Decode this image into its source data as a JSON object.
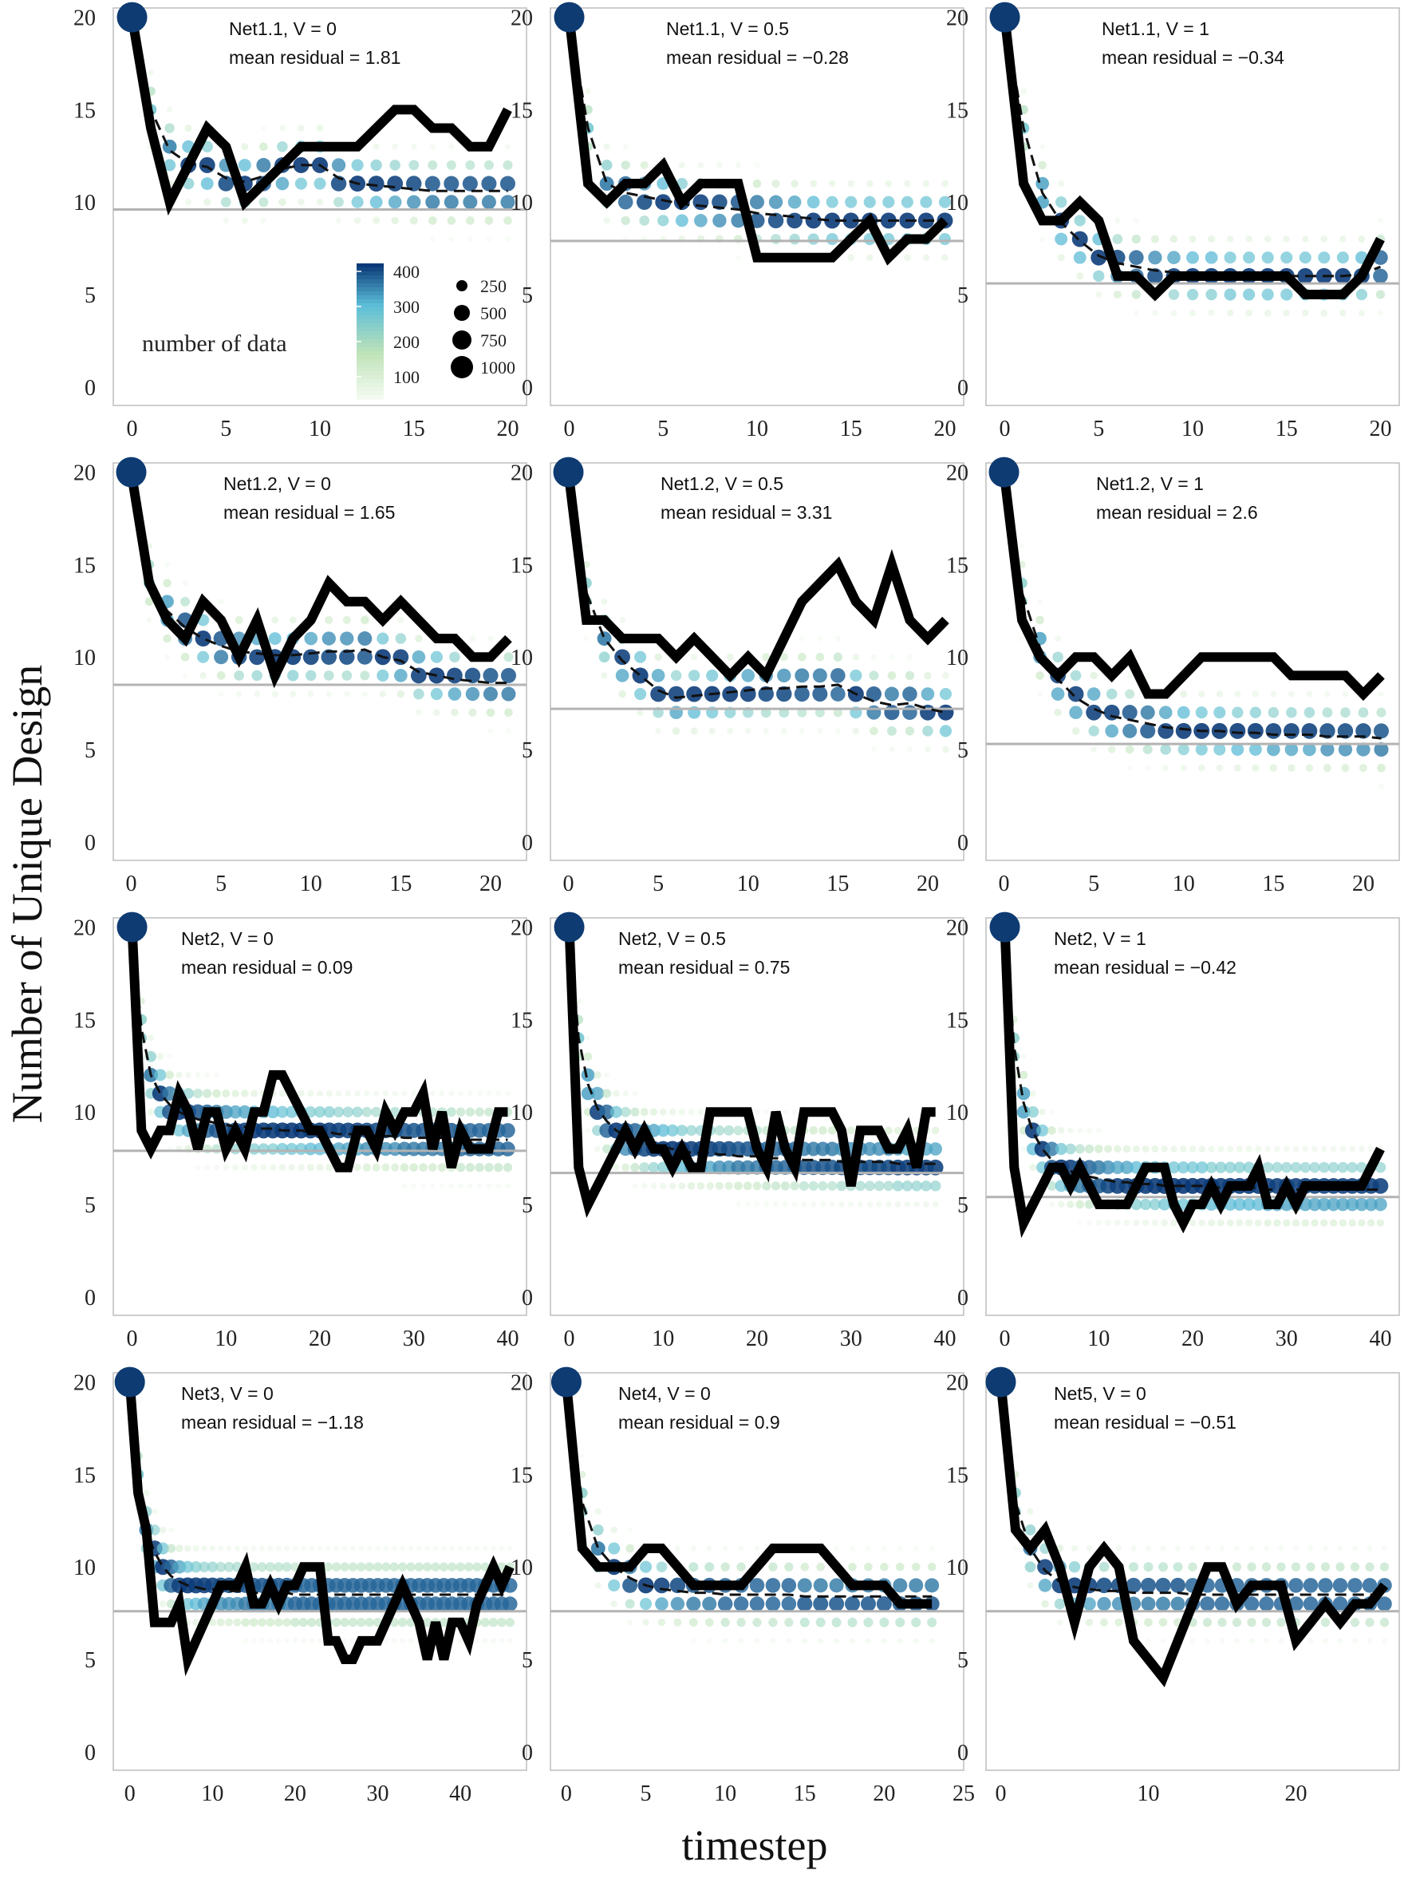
{
  "figure": {
    "ylabel": "Number of Unique Design",
    "xlabel": "timestep"
  },
  "legend": {
    "title": "number of data",
    "color_ticks": [
      "400",
      "300",
      "200",
      "100"
    ],
    "size_labels": [
      "250",
      "500",
      "750",
      "1000"
    ],
    "colors": {
      "low": "#f2faf0",
      "mid": "#bfe3b8",
      "midhigh": "#5bbdd8",
      "high": "#0b3a78"
    }
  },
  "colors": {
    "observed": "#000000",
    "mean": "#111111",
    "baseline": "#b3b3b3",
    "panel_border": "#bdbdbd",
    "start_point": "#0e3b72"
  },
  "chart_data": [
    {
      "type": "line",
      "title": "Net1.1, V = 0",
      "subtitle": "mean residual = 1.81",
      "xlim": [
        -1,
        21
      ],
      "xticks": [
        0,
        5,
        10,
        15,
        20
      ],
      "ylim": [
        -1,
        20.5
      ],
      "yticks": [
        0,
        5,
        10,
        15,
        20
      ],
      "baseline": 9.6,
      "spread": 1.6,
      "observed": [
        20,
        14,
        10,
        12,
        14,
        13,
        10,
        11,
        12,
        13,
        13,
        13,
        13,
        14,
        15,
        15,
        14,
        14,
        13,
        13,
        15
      ],
      "mean": [
        20,
        15,
        12.8,
        12.1,
        11.9,
        11.3,
        11.1,
        11.4,
        11.8,
        12,
        12,
        11.3,
        11,
        10.9,
        10.8,
        10.7,
        10.6,
        10.6,
        10.6,
        10.6,
        10.6
      ],
      "show_legend": true
    },
    {
      "type": "line",
      "title": "Net1.1, V = 0.5",
      "subtitle": "mean residual = −0.28",
      "xlim": [
        -1,
        21
      ],
      "xticks": [
        0,
        5,
        10,
        15,
        20
      ],
      "ylim": [
        -1,
        20.5
      ],
      "yticks": [
        0,
        5,
        10,
        15,
        20
      ],
      "baseline": 7.9,
      "spread": 1.6,
      "observed": [
        20,
        11,
        10,
        11,
        11,
        12,
        10,
        11,
        11,
        11,
        7,
        7,
        7,
        7,
        7,
        8,
        9,
        7,
        8,
        8,
        9
      ],
      "mean": [
        20,
        14,
        11,
        10.5,
        10.3,
        10.1,
        9.9,
        9.8,
        9.7,
        9.6,
        9.4,
        9.3,
        9.2,
        9.1,
        9,
        9,
        9,
        9,
        9,
        9,
        9
      ],
      "show_legend": false
    },
    {
      "type": "line",
      "title": "Net1.1, V = 1",
      "subtitle": "mean residual = −0.34",
      "xlim": [
        -1,
        21
      ],
      "xticks": [
        0,
        5,
        10,
        15,
        20
      ],
      "ylim": [
        -1,
        20.5
      ],
      "yticks": [
        0,
        5,
        10,
        15,
        20
      ],
      "baseline": 5.6,
      "spread": 1.6,
      "observed": [
        20,
        11,
        9,
        9,
        10,
        9,
        6,
        6,
        5,
        6,
        6,
        6,
        6,
        6,
        6,
        6,
        5,
        5,
        5,
        6,
        8
      ],
      "mean": [
        20,
        14,
        10.5,
        8.9,
        7.9,
        7.1,
        6.7,
        6.5,
        6.3,
        6.2,
        6.1,
        6.1,
        6,
        6,
        6,
        6,
        6,
        6,
        6,
        6.1,
        6.5
      ],
      "show_legend": false
    },
    {
      "type": "line",
      "title": "Net1.2, V = 0",
      "subtitle": "mean residual = 1.65",
      "xlim": [
        -1,
        22
      ],
      "xticks": [
        0,
        5,
        10,
        15,
        20
      ],
      "ylim": [
        -1,
        20.5
      ],
      "yticks": [
        0,
        5,
        10,
        15,
        20
      ],
      "baseline": 8.5,
      "spread": 1.6,
      "observed": [
        20,
        14,
        12,
        11,
        13,
        12,
        10,
        12,
        9,
        11,
        12,
        14,
        13,
        13,
        12,
        13,
        12,
        11,
        11,
        10,
        10,
        11
      ],
      "mean": [
        20,
        14.2,
        12.5,
        11.6,
        11,
        10.6,
        10.3,
        10.2,
        10.1,
        10.1,
        10.2,
        10.3,
        10.3,
        10.4,
        10,
        9.8,
        9.2,
        9,
        8.8,
        8.7,
        8.6,
        8.6
      ],
      "show_legend": false
    },
    {
      "type": "line",
      "title": "Net1.2, V = 0.5",
      "subtitle": "mean residual = 3.31",
      "xlim": [
        -1,
        22
      ],
      "xticks": [
        0,
        5,
        10,
        15,
        20
      ],
      "ylim": [
        -1,
        20.5
      ],
      "yticks": [
        0,
        5,
        10,
        15,
        20
      ],
      "baseline": 7.2,
      "spread": 1.6,
      "observed": [
        20,
        12,
        12,
        11,
        11,
        11,
        10,
        11,
        10,
        9,
        10,
        9,
        11,
        13,
        14,
        15,
        13,
        12,
        15,
        12,
        11,
        12
      ],
      "mean": [
        20,
        13.5,
        11,
        9.8,
        9,
        8.2,
        7.8,
        7.9,
        8,
        8.1,
        8.2,
        8.3,
        8.3,
        8.4,
        8.4,
        8.5,
        8,
        7.6,
        7.4,
        7.5,
        7.2,
        7
      ],
      "show_legend": false
    },
    {
      "type": "line",
      "title": "Net1.2, V = 1",
      "subtitle": "mean residual = 2.6",
      "xlim": [
        -1,
        22
      ],
      "xticks": [
        0,
        5,
        10,
        15,
        20
      ],
      "ylim": [
        -1,
        20.5
      ],
      "yticks": [
        0,
        5,
        10,
        15,
        20
      ],
      "baseline": 5.3,
      "spread": 1.6,
      "observed": [
        20,
        12,
        10,
        9,
        10,
        10,
        9,
        10,
        8,
        8,
        9,
        10,
        10,
        10,
        10,
        10,
        9,
        9,
        9,
        9,
        8,
        9
      ],
      "mean": [
        20,
        13.5,
        10.5,
        8.8,
        7.8,
        7.2,
        6.8,
        6.6,
        6.4,
        6.2,
        6.1,
        6,
        6,
        5.9,
        5.9,
        5.8,
        5.8,
        5.8,
        5.7,
        5.7,
        5.7,
        5.6
      ],
      "show_legend": false
    },
    {
      "type": "line",
      "title": "Net2, V = 0",
      "subtitle": "mean residual = 0.09",
      "xlim": [
        -2,
        42
      ],
      "xticks": [
        0,
        10,
        20,
        30,
        40
      ],
      "ylim": [
        -1,
        20.5
      ],
      "yticks": [
        0,
        5,
        10,
        15,
        20
      ],
      "baseline": 7.9,
      "spread": 1.6,
      "observed": [
        20,
        9,
        8,
        9,
        9,
        11,
        10,
        8,
        10,
        10,
        8,
        9,
        8,
        10,
        10,
        12,
        12,
        11,
        10,
        9,
        9,
        8,
        7,
        7,
        9,
        9,
        8,
        10,
        9,
        10,
        10,
        11,
        8,
        10,
        7,
        9,
        8,
        8,
        8,
        10,
        10
      ],
      "mean": [
        20,
        14.5,
        12,
        11,
        10.4,
        10,
        9.8,
        9.6,
        9.5,
        9.4,
        9.3,
        9.2,
        9.2,
        9.1,
        9.1,
        9.1,
        9,
        9,
        9,
        8.9,
        8.9,
        8.9,
        8.8,
        8.8,
        8.8,
        8.7,
        8.7,
        8.7,
        8.7,
        8.6,
        8.6,
        8.6,
        8.6,
        8.6,
        8.6,
        8.5,
        8.5,
        8.5,
        8.5,
        8.5,
        8.5
      ],
      "show_legend": false
    },
    {
      "type": "line",
      "title": "Net2, V = 0.5",
      "subtitle": "mean residual = 0.75",
      "xlim": [
        -2,
        42
      ],
      "xticks": [
        0,
        10,
        20,
        30,
        40
      ],
      "ylim": [
        -1,
        20.5
      ],
      "yticks": [
        0,
        5,
        10,
        15,
        20
      ],
      "baseline": 6.7,
      "spread": 1.6,
      "observed": [
        20,
        7,
        5,
        6,
        7,
        8,
        9,
        8,
        9,
        8,
        8,
        7,
        8,
        7,
        7,
        10,
        10,
        10,
        10,
        10,
        8,
        7,
        10,
        8,
        7,
        10,
        10,
        10,
        10,
        9,
        6,
        9,
        9,
        9,
        8,
        8,
        9,
        7,
        10,
        10
      ],
      "mean": [
        20,
        14,
        11.5,
        10.2,
        9.5,
        9,
        8.7,
        8.5,
        8.3,
        8.2,
        8.1,
        8,
        7.9,
        7.8,
        7.8,
        7.8,
        7.7,
        7.7,
        7.6,
        7.6,
        7.6,
        7.5,
        7.5,
        7.5,
        7.5,
        7.4,
        7.4,
        7.4,
        7.4,
        7.3,
        7.3,
        7.3,
        7.3,
        7.3,
        7.3,
        7.2,
        7.2,
        7.2,
        7.2,
        7.2
      ],
      "show_legend": false
    },
    {
      "type": "line",
      "title": "Net2, V = 1",
      "subtitle": "mean residual = −0.42",
      "xlim": [
        -2,
        42
      ],
      "xticks": [
        0,
        10,
        20,
        30,
        40
      ],
      "ylim": [
        -1,
        20.5
      ],
      "yticks": [
        0,
        5,
        10,
        15,
        20
      ],
      "baseline": 5.4,
      "spread": 1.6,
      "observed": [
        20,
        7,
        4,
        5,
        6,
        7,
        7,
        6,
        7,
        6,
        5,
        5,
        5,
        5,
        6,
        7,
        7,
        7,
        5,
        4,
        5,
        5,
        6,
        5,
        6,
        6,
        6,
        7,
        5,
        5,
        6,
        5,
        6,
        6,
        6,
        6,
        6,
        6,
        6,
        7,
        8
      ],
      "mean": [
        20,
        13.5,
        10.5,
        8.9,
        8,
        7.4,
        7,
        6.8,
        6.6,
        6.5,
        6.4,
        6.3,
        6.2,
        6.2,
        6.1,
        6.1,
        6.1,
        6,
        6,
        6,
        6,
        6,
        5.9,
        5.9,
        5.9,
        5.9,
        5.9,
        5.9,
        5.8,
        5.8,
        5.8,
        5.8,
        5.8,
        5.8,
        5.8,
        5.8,
        5.8,
        5.8,
        5.8,
        5.8,
        5.8
      ],
      "show_legend": false
    },
    {
      "type": "line",
      "title": "Net3, V = 0",
      "subtitle": "mean residual = −1.18",
      "xlim": [
        -2,
        48
      ],
      "xticks": [
        0,
        10,
        20,
        30,
        40
      ],
      "ylim": [
        -1,
        20.5
      ],
      "yticks": [
        0,
        5,
        10,
        15,
        20
      ],
      "baseline": 7.6,
      "spread": 1.6,
      "observed": [
        20,
        14,
        12,
        7,
        7,
        7,
        8,
        5,
        6,
        7,
        8,
        9,
        9,
        9,
        10,
        8,
        8,
        9,
        8,
        9,
        9,
        10,
        10,
        10,
        6,
        6,
        5,
        5,
        6,
        6,
        6,
        7,
        8,
        9,
        8,
        7,
        5,
        7,
        5,
        7,
        7,
        6,
        8,
        9,
        10,
        9,
        10
      ],
      "mean": [
        20,
        15,
        12,
        10.8,
        10,
        9.5,
        9.2,
        9,
        8.9,
        8.8,
        8.8,
        8.7,
        8.7,
        8.7,
        8.6,
        8.6,
        8.6,
        8.6,
        8.6,
        8.6,
        8.5,
        8.5,
        8.5,
        8.5,
        8.5,
        8.5,
        8.5,
        8.5,
        8.5,
        8.5,
        8.5,
        8.5,
        8.5,
        8.5,
        8.5,
        8.5,
        8.5,
        8.5,
        8.5,
        8.5,
        8.5,
        8.5,
        8.5,
        8.5,
        8.5,
        8.5,
        8.5
      ],
      "show_legend": false
    },
    {
      "type": "line",
      "title": "Net4, V = 0",
      "subtitle": "mean residual = 0.9",
      "xlim": [
        -1,
        25
      ],
      "xticks": [
        0,
        5,
        10,
        15,
        20,
        25
      ],
      "ylim": [
        -1,
        20.5
      ],
      "yticks": [
        0,
        5,
        10,
        15,
        20
      ],
      "baseline": 7.6,
      "spread": 1.6,
      "observed": [
        20,
        11,
        10,
        10,
        10,
        11,
        11,
        10,
        9,
        9,
        9,
        9,
        10,
        11,
        11,
        11,
        11,
        10,
        9,
        9,
        9,
        8,
        8,
        8
      ],
      "mean": [
        20,
        13.5,
        11,
        10,
        9.4,
        9,
        8.8,
        8.7,
        8.6,
        8.6,
        8.5,
        8.5,
        8.5,
        8.5,
        8.5,
        8.4,
        8.4,
        8.4,
        8.4,
        8.4,
        8.4,
        8.4,
        8.4,
        8.4
      ],
      "show_legend": false
    },
    {
      "type": "line",
      "title": "Net5, V = 0",
      "subtitle": "mean residual = −0.51",
      "xlim": [
        -1,
        27
      ],
      "xticks": [
        0,
        10,
        20
      ],
      "ylim": [
        -1,
        20.5
      ],
      "yticks": [
        0,
        5,
        10,
        15,
        20
      ],
      "baseline": 7.6,
      "spread": 1.6,
      "observed": [
        20,
        12,
        11,
        12,
        10,
        7,
        10,
        11,
        10,
        6,
        5,
        4,
        6,
        8,
        10,
        10,
        8,
        9,
        9,
        9,
        6,
        7,
        8,
        7,
        8,
        8,
        9
      ],
      "mean": [
        20,
        13.5,
        11,
        9.8,
        9.2,
        8.9,
        8.8,
        8.7,
        8.7,
        8.6,
        8.6,
        8.6,
        8.6,
        8.5,
        8.5,
        8.5,
        8.5,
        8.5,
        8.5,
        8.5,
        8.5,
        8.5,
        8.5,
        8.5,
        8.5,
        8.5,
        8.5
      ],
      "show_legend": false
    }
  ]
}
